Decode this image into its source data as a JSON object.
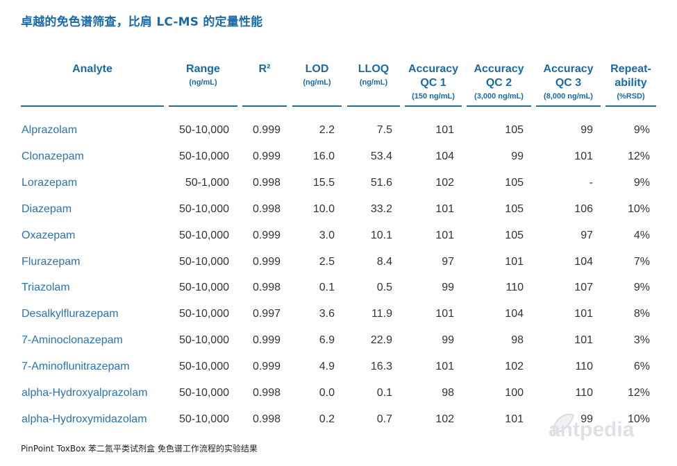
{
  "title": "卓越的免色谱筛查，比肩 LC-MS 的定量性能",
  "columns": [
    {
      "label": "Analyte",
      "unit": ""
    },
    {
      "label": "Range",
      "unit": "(ng/mL)"
    },
    {
      "label": "R²",
      "unit": ""
    },
    {
      "label": "LOD",
      "unit": "(ng/mL)"
    },
    {
      "label": "LLOQ",
      "unit": "(ng/mL)"
    },
    {
      "label": "Accuracy QC 1",
      "label_line1": "Accuracy",
      "label_line2": "QC 1",
      "unit": "(150 ng/mL)"
    },
    {
      "label": "Accuracy QC 2",
      "label_line1": "Accuracy",
      "label_line2": "QC 2",
      "unit": "(3,000 ng/mL)"
    },
    {
      "label": "Accuracy QC 3",
      "label_line1": "Accuracy",
      "label_line2": "QC 3",
      "unit": "(8,000 ng/mL)"
    },
    {
      "label": "Repeat-ability",
      "label_line1": "Repeat-",
      "label_line2": "ability",
      "unit": "(%RSD)"
    }
  ],
  "rows": [
    [
      "Alprazolam",
      "50-10,000",
      "0.999",
      "2.2",
      "7.5",
      "101",
      "105",
      "99",
      "9%"
    ],
    [
      "Clonazepam",
      "50-10,000",
      "0.999",
      "16.0",
      "53.4",
      "104",
      "99",
      "101",
      "12%"
    ],
    [
      "Lorazepam",
      "50-1,000",
      "0.998",
      "15.5",
      "51.6",
      "102",
      "105",
      "-",
      "9%"
    ],
    [
      "Diazepam",
      "50-10,000",
      "0.998",
      "10.0",
      "33.2",
      "101",
      "105",
      "106",
      "10%"
    ],
    [
      "Oxazepam",
      "50-10,000",
      "0.999",
      "3.0",
      "10.1",
      "101",
      "105",
      "97",
      "4%"
    ],
    [
      "Flurazepam",
      "50-10,000",
      "0.999",
      "2.5",
      "8.4",
      "97",
      "101",
      "104",
      "7%"
    ],
    [
      "Triazolam",
      "50-10,000",
      "0.998",
      "0.1",
      "0.5",
      "99",
      "110",
      "107",
      "9%"
    ],
    [
      "Desalkylflurazepam",
      "50-10,000",
      "0.997",
      "3.6",
      "11.9",
      "101",
      "104",
      "101",
      "8%"
    ],
    [
      "7-Aminoclonazepam",
      "50-10,000",
      "0.999",
      "6.9",
      "22.9",
      "99",
      "98",
      "101",
      "3%"
    ],
    [
      "7-Aminoflunitrazepam",
      "50-10,000",
      "0.999",
      "4.9",
      "16.3",
      "101",
      "102",
      "110",
      "6%"
    ],
    [
      "alpha-Hydroxyalprazolam",
      "50-10,000",
      "0.998",
      "0.0",
      "0.1",
      "98",
      "100",
      "110",
      "12%"
    ],
    [
      "alpha-Hydroxymidazolam",
      "50-10,000",
      "0.998",
      "0.2",
      "0.7",
      "102",
      "101",
      "99",
      "10%"
    ]
  ],
  "footer": "PinPoint ToxBox 苯二氮平类试剂盒 免色谱工作流程的实验结果",
  "watermark": "antpedia",
  "colors": {
    "accent": "#1a6aa8",
    "name_text": "#2a74b0",
    "body_text": "#333333"
  }
}
